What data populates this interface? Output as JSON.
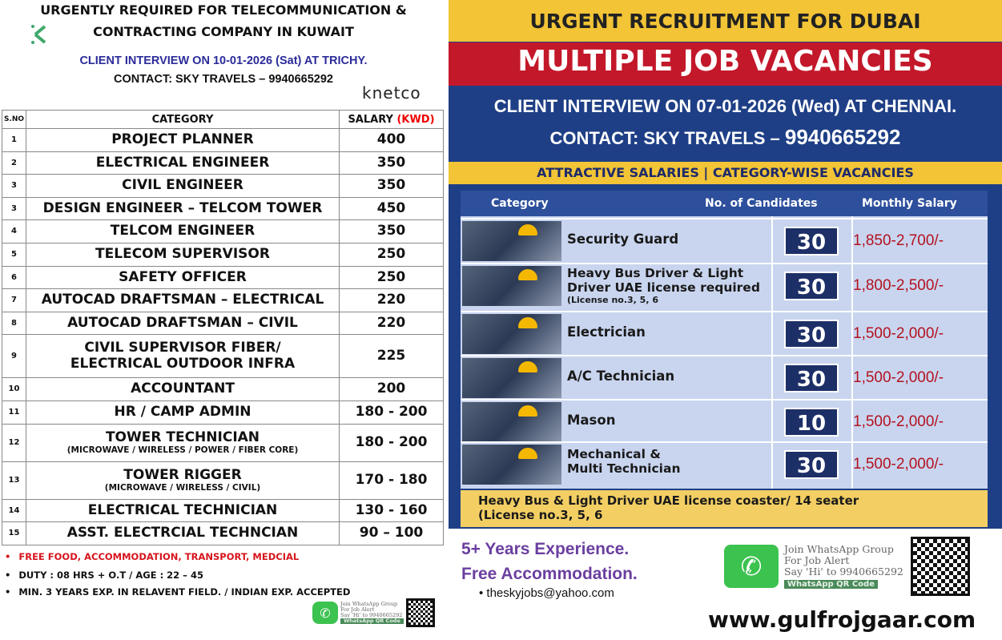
{
  "left": {
    "title_line1": "URGENTLY REQUIRED FOR TELECOMMUNICATION &",
    "title_line2": "CONTRACTING COMPANY IN KUWAIT",
    "interview": "CLIENT INTERVIEW ON 10-01-2026 (Sat) AT TRICHY.",
    "contact": "CONTACT: SKY TRAVELS – 9940665292",
    "logo": "knetco",
    "headers": {
      "sno": "S.NO",
      "category": "CATEGORY",
      "salary": "SALARY",
      "unit": "(KWD)"
    },
    "rows": [
      {
        "sno": "1",
        "category": "PROJECT PLANNER",
        "salary": "400"
      },
      {
        "sno": "2",
        "category": "ELECTRICAL ENGINEER",
        "salary": "350"
      },
      {
        "sno": "3",
        "category": "CIVIL ENGINEER",
        "salary": "350"
      },
      {
        "sno": "3",
        "category": "DESIGN ENGINEER – TELCOM TOWER",
        "salary": "450"
      },
      {
        "sno": "4",
        "category": "TELCOM ENGINEER",
        "salary": "350"
      },
      {
        "sno": "5",
        "category": "TELECOM SUPERVISOR",
        "salary": "250"
      },
      {
        "sno": "6",
        "category": "SAFETY OFFICER",
        "salary": "250"
      },
      {
        "sno": "7",
        "category": "AUTOCAD DRAFTSMAN –  ELECTRICAL",
        "salary": "220"
      },
      {
        "sno": "8",
        "category": "AUTOCAD DRAFTSMAN – CIVIL",
        "salary": "220"
      },
      {
        "sno": "9",
        "category": "CIVIL SUPERVISOR FIBER/",
        "category2": "ELECTRICAL OUTDOOR INFRA",
        "salary": "225"
      },
      {
        "sno": "10",
        "category": "ACCOUNTANT",
        "salary": "200"
      },
      {
        "sno": "11",
        "category": "HR / CAMP ADMIN",
        "salary": "180 - 200"
      },
      {
        "sno": "12",
        "category": "TOWER TECHNICIAN",
        "sub": "(MICROWAVE / WIRELESS / POWER / FIBER CORE)",
        "salary": "180 - 200"
      },
      {
        "sno": "13",
        "category": "TOWER RIGGER",
        "sub": "(MICROWAVE / WIRELESS / CIVIL)",
        "salary": "170 - 180"
      },
      {
        "sno": "14",
        "category": "ELECTRICAL TECHNICIAN",
        "salary": "130 - 160"
      },
      {
        "sno": "15",
        "category": "ASST. ELECTRCIAL TECHNCIAN",
        "salary": "90 – 100"
      }
    ],
    "bullets": [
      "FREE FOOD, ACCOMMODATION, TRANSPORT, MEDCIAL",
      "DUTY : 08 HRS + O.T / AGE : 22 – 45",
      "MIN. 3 YEARS EXP. IN RELAVENT FIELD. / INDIAN EXP. ACCEPTED"
    ],
    "whatsapp": {
      "line1": "Join WhatsApp Group",
      "line2": "For Job Alert",
      "line3": "Say 'Hi' to 9940665292",
      "qr": "WhatsApp QR Code"
    }
  },
  "right": {
    "banner1": "URGENT RECRUITMENT FOR DUBAI",
    "banner2": "MULTIPLE JOB VACANCIES",
    "interview": "CLIENT INTERVIEW ON  07-01-2026  (Wed) AT CHENNAI.",
    "contact_label": "CONTACT: SKY TRAVELS – ",
    "contact_phone": "9940665292",
    "strip": "ATTRACTIVE SALARIES | CATEGORY-WISE VACANCIES",
    "headers": {
      "category": "Category",
      "candidates": "No. of Candidates",
      "salary": "Monthly Salary"
    },
    "rows": [
      {
        "category": "Security Guard",
        "count": "30",
        "salary": "1,850-2,700/-"
      },
      {
        "category": "Heavy Bus Driver & Light",
        "category2": "Driver UAE license required",
        "sub": "(License no.3, 5, 6",
        "count": "30",
        "salary": "1,800-2,500/-"
      },
      {
        "category": "Electrician",
        "count": "30",
        "salary": "1,500-2,000/-"
      },
      {
        "category": "A/C Technician",
        "count": "30",
        "salary": "1,500-2,000/-"
      },
      {
        "category": "Mason",
        "count": "10",
        "salary": "1,500-2,000/-"
      },
      {
        "category": "Mechanical &",
        "category2": "Multi Technician",
        "count": "30",
        "salary": "1,500-2,000/-"
      }
    ],
    "note1": "Heavy Bus & Light Driver UAE license coaster/ 14 seater",
    "note2": "(License no.3, 5, 6",
    "exp": "5+ Years Experience.",
    "accom": "Free Accommodation.",
    "email": "theskyjobs@yahoo.com",
    "whatsapp": {
      "line1": "Join WhatsApp Group",
      "line2": "For Job Alert",
      "line3": "Say 'Hi' to 9940665292",
      "qr": "WhatsApp  QR Code"
    }
  },
  "website": "www.gulfrojgaar.com",
  "colors": {
    "yellow": "#f2c436",
    "red": "#c3182a",
    "navy": "#1e3f86",
    "purple": "#6b3fa0",
    "whatsapp": "#3cc24f"
  }
}
